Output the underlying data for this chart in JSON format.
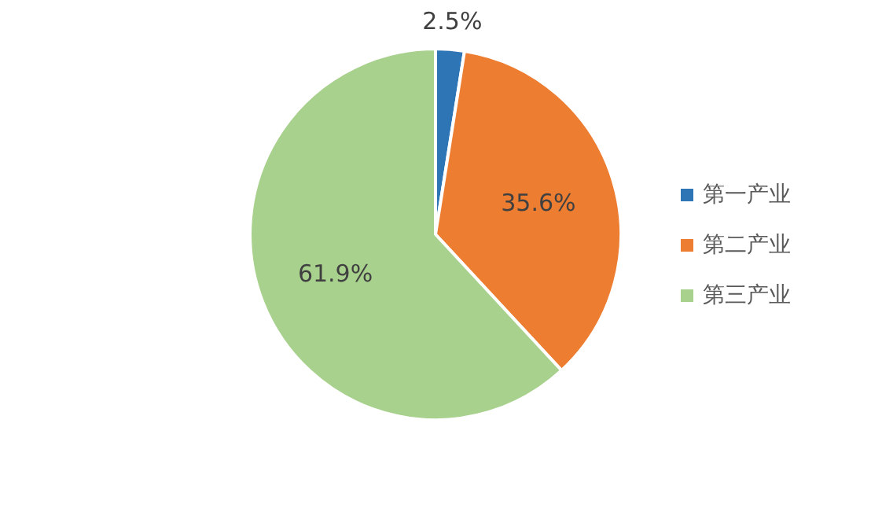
{
  "chart_data": {
    "type": "pie",
    "categories": [
      "第一产业",
      "第二产业",
      "第三产业"
    ],
    "values": [
      2.5,
      35.6,
      61.9
    ],
    "colors": [
      "#2e75b6",
      "#ed7d31",
      "#a9d18e"
    ],
    "value_labels": [
      "2.5%",
      "35.6%",
      "61.9%"
    ],
    "legend": "right"
  }
}
